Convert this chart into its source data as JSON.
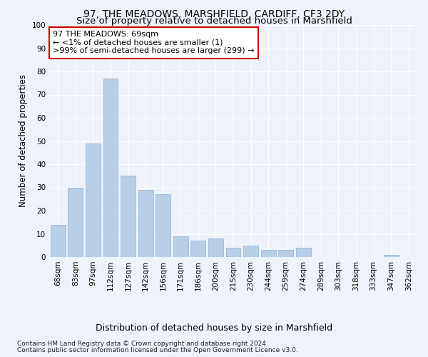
{
  "title": "97, THE MEADOWS, MARSHFIELD, CARDIFF, CF3 2DY",
  "subtitle": "Size of property relative to detached houses in Marshfield",
  "xlabel": "Distribution of detached houses by size in Marshfield",
  "ylabel": "Number of detached properties",
  "categories": [
    "68sqm",
    "83sqm",
    "97sqm",
    "112sqm",
    "127sqm",
    "142sqm",
    "156sqm",
    "171sqm",
    "186sqm",
    "200sqm",
    "215sqm",
    "230sqm",
    "244sqm",
    "259sqm",
    "274sqm",
    "289sqm",
    "303sqm",
    "318sqm",
    "333sqm",
    "347sqm",
    "362sqm"
  ],
  "values": [
    14,
    30,
    49,
    77,
    35,
    29,
    27,
    9,
    7,
    8,
    4,
    5,
    3,
    3,
    4,
    0,
    0,
    0,
    0,
    1,
    0
  ],
  "bar_color": "#b8cfe8",
  "bar_edge_color": "#8ab0d8",
  "ylim": [
    0,
    100
  ],
  "yticks": [
    0,
    10,
    20,
    30,
    40,
    50,
    60,
    70,
    80,
    90,
    100
  ],
  "annotation_line1": "97 THE MEADOWS: 69sqm",
  "annotation_line2": "← <1% of detached houses are smaller (1)",
  "annotation_line3": ">99% of semi-detached houses are larger (299) →",
  "annotation_box_color": "#ffffff",
  "annotation_border_color": "#cc0000",
  "footer_line1": "Contains HM Land Registry data © Crown copyright and database right 2024.",
  "footer_line2": "Contains public sector information licensed under the Open Government Licence v3.0.",
  "background_color": "#eef2fb",
  "grid_color": "#ffffff",
  "title_fontsize": 10,
  "subtitle_fontsize": 9.5,
  "ylabel_fontsize": 8.5,
  "xlabel_fontsize": 9,
  "tick_fontsize": 7.5,
  "annotation_fontsize": 8,
  "footer_fontsize": 6.5
}
